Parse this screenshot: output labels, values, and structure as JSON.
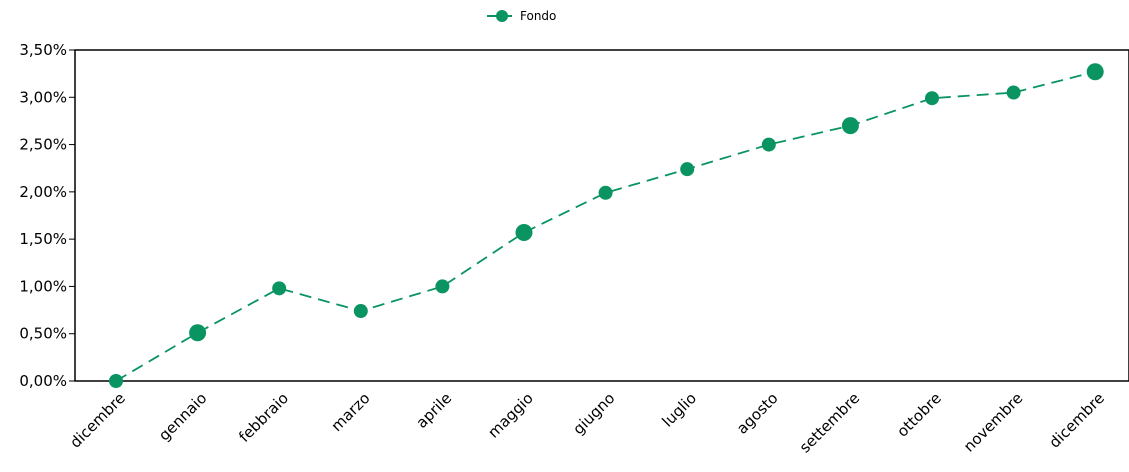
{
  "chart_data": {
    "type": "line",
    "categories": [
      "dicembre",
      "gennaio",
      "febbraio",
      "marzo",
      "aprile",
      "maggio",
      "giugno",
      "luglio",
      "agosto",
      "settembre",
      "ottobre",
      "novembre",
      "dicembre"
    ],
    "series": [
      {
        "name": "Fondo",
        "values": [
          0.0,
          0.51,
          0.98,
          0.74,
          1.0,
          1.57,
          1.99,
          2.24,
          2.5,
          2.7,
          2.99,
          3.05,
          3.27
        ],
        "color": "#0a9461",
        "line_style": "dashed",
        "marker": "circle"
      }
    ],
    "y_ticks": [
      "0,00%",
      "0,50%",
      "1,00%",
      "1,50%",
      "2,00%",
      "2,50%",
      "3,00%",
      "3,50%"
    ],
    "ylim": [
      0,
      3.5
    ],
    "y_unit": "percent",
    "grid": false,
    "legend_position": "top-center",
    "title": "",
    "xlabel": "",
    "ylabel": ""
  }
}
